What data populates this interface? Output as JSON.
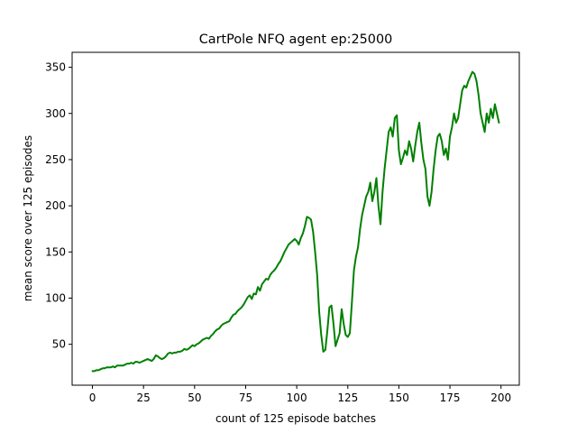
{
  "chart_data": {
    "type": "line",
    "title": "CartPole NFQ agent ep:25000",
    "xlabel": "count of 125 episode batches",
    "ylabel": "mean score over 125 episodes",
    "xlim": [
      -9.95,
      208.95
    ],
    "ylim": [
      5.7,
      366.2
    ],
    "xticks": [
      0,
      25,
      50,
      75,
      100,
      125,
      150,
      175,
      200
    ],
    "yticks": [
      50,
      100,
      150,
      200,
      250,
      300,
      350
    ],
    "grid": false,
    "series": [
      {
        "name": "mean score",
        "color": "#008000",
        "x": [
          0,
          1,
          2,
          3,
          4,
          5,
          6,
          7,
          8,
          9,
          10,
          11,
          12,
          13,
          14,
          15,
          16,
          17,
          18,
          19,
          20,
          21,
          22,
          23,
          24,
          25,
          26,
          27,
          28,
          29,
          30,
          31,
          32,
          33,
          34,
          35,
          36,
          37,
          38,
          39,
          40,
          41,
          42,
          43,
          44,
          45,
          46,
          47,
          48,
          49,
          50,
          51,
          52,
          53,
          54,
          55,
          56,
          57,
          58,
          59,
          60,
          61,
          62,
          63,
          64,
          65,
          66,
          67,
          68,
          69,
          70,
          71,
          72,
          73,
          74,
          75,
          76,
          77,
          78,
          79,
          80,
          81,
          82,
          83,
          84,
          85,
          86,
          87,
          88,
          89,
          90,
          91,
          92,
          93,
          94,
          95,
          96,
          97,
          98,
          99,
          100,
          101,
          102,
          103,
          104,
          105,
          106,
          107,
          108,
          109,
          110,
          111,
          112,
          113,
          114,
          115,
          116,
          117,
          118,
          119,
          120,
          121,
          122,
          123,
          124,
          125,
          126,
          127,
          128,
          129,
          130,
          131,
          132,
          133,
          134,
          135,
          136,
          137,
          138,
          139,
          140,
          141,
          142,
          143,
          144,
          145,
          146,
          147,
          148,
          149,
          150,
          151,
          152,
          153,
          154,
          155,
          156,
          157,
          158,
          159,
          160,
          161,
          162,
          163,
          164,
          165,
          166,
          167,
          168,
          169,
          170,
          171,
          172,
          173,
          174,
          175,
          176,
          177,
          178,
          179,
          180,
          181,
          182,
          183,
          184,
          185,
          186,
          187,
          188,
          189,
          190,
          191,
          192,
          193,
          194,
          195,
          196,
          197,
          198,
          199
        ],
        "values": [
          21,
          21,
          22,
          22,
          23,
          24,
          24,
          25,
          25,
          25,
          26,
          25,
          27,
          27,
          27,
          27,
          28,
          29,
          29,
          30,
          29,
          31,
          31,
          30,
          31,
          32,
          33,
          34,
          33,
          32,
          34,
          38,
          37,
          35,
          34,
          35,
          37,
          40,
          41,
          40,
          41,
          41,
          42,
          42,
          43,
          45,
          44,
          45,
          47,
          49,
          48,
          50,
          51,
          53,
          55,
          56,
          57,
          56,
          59,
          61,
          64,
          66,
          67,
          70,
          72,
          73,
          74,
          75,
          79,
          82,
          83,
          86,
          88,
          90,
          93,
          97,
          101,
          103,
          99,
          105,
          104,
          112,
          108,
          115,
          118,
          121,
          120,
          125,
          128,
          130,
          133,
          137,
          140,
          145,
          150,
          154,
          158,
          160,
          162,
          164,
          162,
          158,
          165,
          170,
          178,
          188,
          187,
          185,
          172,
          150,
          125,
          85,
          60,
          42,
          44,
          65,
          90,
          92,
          72,
          48,
          55,
          62,
          88,
          72,
          60,
          58,
          62,
          95,
          130,
          145,
          155,
          175,
          190,
          200,
          210,
          215,
          225,
          205,
          215,
          230,
          200,
          180,
          215,
          240,
          260,
          280,
          285,
          275,
          295,
          298,
          260,
          245,
          252,
          260,
          255,
          270,
          262,
          248,
          265,
          280,
          290,
          268,
          250,
          240,
          210,
          200,
          215,
          240,
          260,
          275,
          278,
          270,
          255,
          262,
          250,
          275,
          285,
          300,
          290,
          295,
          310,
          325,
          330,
          328,
          335,
          340,
          345,
          343,
          335,
          320,
          300,
          290,
          280,
          300,
          290,
          305,
          295,
          310,
          300,
          290
        ]
      }
    ]
  }
}
